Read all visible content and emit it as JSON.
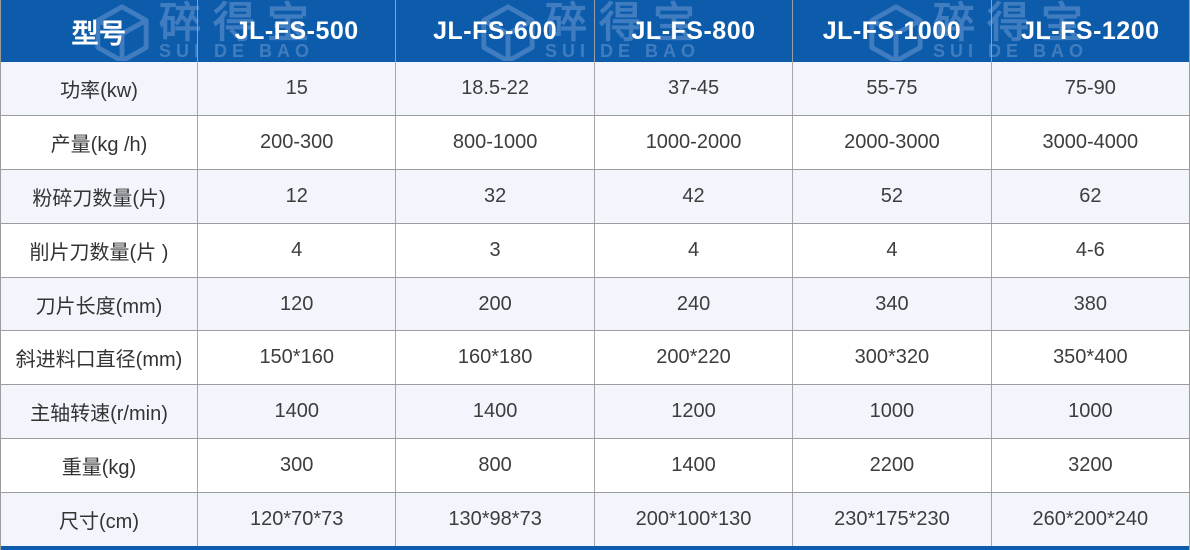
{
  "table": {
    "header": {
      "label_col": "型号",
      "models": [
        "JL-FS-500",
        "JL-FS-600",
        "JL-FS-800",
        "JL-FS-1000",
        "JL-FS-1200"
      ]
    },
    "rows": [
      {
        "label": "功率(kw)",
        "values": [
          "15",
          "18.5-22",
          "37-45",
          "55-75",
          "75-90"
        ]
      },
      {
        "label": "产量(kg /h)",
        "values": [
          "200-300",
          "800-1000",
          "1000-2000",
          "2000-3000",
          "3000-4000"
        ]
      },
      {
        "label": "粉碎刀数量(片)",
        "values": [
          "12",
          "32",
          "42",
          "52",
          "62"
        ]
      },
      {
        "label": "削片刀数量(片 )",
        "values": [
          "4",
          "3",
          "4",
          "4",
          "4-6"
        ]
      },
      {
        "label": "刀片长度(mm)",
        "values": [
          "120",
          "200",
          "240",
          "340",
          "380"
        ]
      },
      {
        "label": "斜进料口直径(mm)",
        "values": [
          "150*160",
          "160*180",
          "200*220",
          "300*320",
          "350*400"
        ]
      },
      {
        "label": "主轴转速(r/min)",
        "values": [
          "1400",
          "1400",
          "1200",
          "1000",
          "1000"
        ]
      },
      {
        "label": "重量(kg)",
        "values": [
          "300",
          "800",
          "1400",
          "2200",
          "3200"
        ]
      },
      {
        "label": "尺寸(cm)",
        "values": [
          "120*70*73",
          "130*98*73",
          "200*100*130",
          "230*175*230",
          "260*200*240"
        ]
      }
    ]
  },
  "watermark": {
    "brand_cn": "碎得宝",
    "brand_en": "SUI DE BAO"
  },
  "colors": {
    "header_bg": "#0d5cab",
    "header_text": "#ffffff",
    "row_alt_bg": "#f2f6fc",
    "row_bg": "#ffffff",
    "grid_border": "#9c9c9c",
    "cell_text": "#3d3d3d",
    "watermark": "#4f86c6"
  }
}
